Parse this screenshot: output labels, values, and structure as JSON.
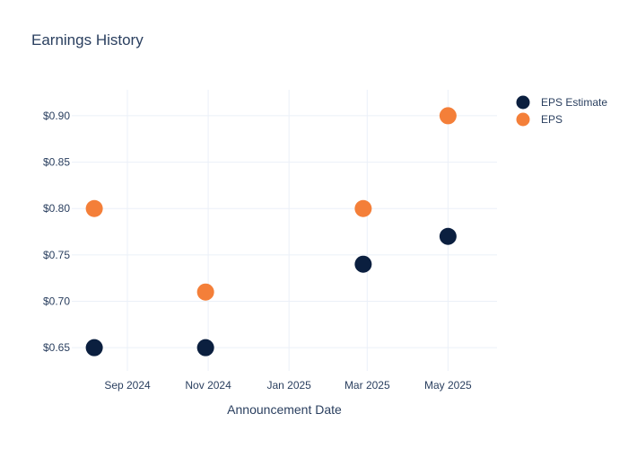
{
  "chart_data": {
    "type": "scatter",
    "title": "Earnings History",
    "xlabel": "Announcement Date",
    "ylabel": "",
    "x_ticks": [
      "Sep 2024",
      "Nov 2024",
      "Jan 2025",
      "Mar 2025",
      "May 2025"
    ],
    "y_ticks": [
      "$0.65",
      "$0.70",
      "$0.75",
      "$0.80",
      "$0.85",
      "$0.90"
    ],
    "ylim": [
      0.625,
      0.928
    ],
    "xlim": [
      "2024-07-21",
      "2025-06-07"
    ],
    "grid": true,
    "legend_position": "top-right",
    "series": [
      {
        "name": "EPS Estimate",
        "color": "#0b1f3f",
        "points": [
          {
            "x": "2024-08-07",
            "y": 0.65
          },
          {
            "x": "2024-10-30",
            "y": 0.65
          },
          {
            "x": "2025-02-26",
            "y": 0.74
          },
          {
            "x": "2025-05-01",
            "y": 0.77
          }
        ]
      },
      {
        "name": "EPS",
        "color": "#f47f39",
        "points": [
          {
            "x": "2024-08-07",
            "y": 0.8
          },
          {
            "x": "2024-10-30",
            "y": 0.71
          },
          {
            "x": "2025-02-26",
            "y": 0.8
          },
          {
            "x": "2025-05-01",
            "y": 0.9
          }
        ]
      }
    ]
  }
}
